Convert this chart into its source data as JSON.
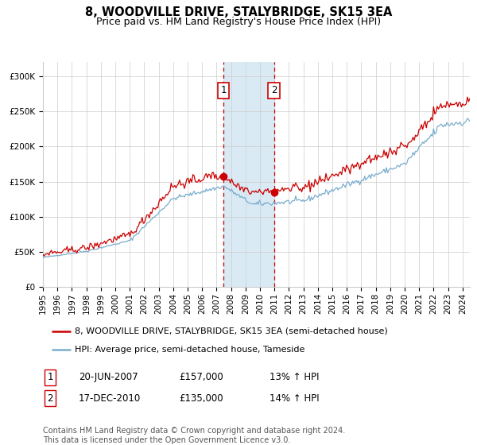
{
  "title": "8, WOODVILLE DRIVE, STALYBRIDGE, SK15 3EA",
  "subtitle": "Price paid vs. HM Land Registry's House Price Index (HPI)",
  "xlabel": "",
  "ylabel": "",
  "ylim": [
    0,
    320000
  ],
  "xlim_start": 1995.0,
  "xlim_end": 2024.5,
  "yticks": [
    0,
    50000,
    100000,
    150000,
    200000,
    250000,
    300000
  ],
  "ytick_labels": [
    "£0",
    "£50K",
    "£100K",
    "£150K",
    "£200K",
    "£250K",
    "£300K"
  ],
  "xtick_years": [
    1995,
    1996,
    1997,
    1998,
    1999,
    2000,
    2001,
    2002,
    2003,
    2004,
    2005,
    2006,
    2007,
    2008,
    2009,
    2010,
    2011,
    2012,
    2013,
    2014,
    2015,
    2016,
    2017,
    2018,
    2019,
    2020,
    2021,
    2022,
    2023,
    2024
  ],
  "red_line_color": "#cc0000",
  "blue_line_color": "#7aadcc",
  "grid_color": "#cccccc",
  "background_color": "#ffffff",
  "sale1_x": 2007.47,
  "sale1_y": 157000,
  "sale1_label": "1",
  "sale2_x": 2010.96,
  "sale2_y": 135000,
  "sale2_label": "2",
  "shade_x1": 2007.47,
  "shade_x2": 2010.96,
  "shade_color": "#daeaf5",
  "dashed_line_color": "#cc0000",
  "legend_red_label": "8, WOODVILLE DRIVE, STALYBRIDGE, SK15 3EA (semi-detached house)",
  "legend_blue_label": "HPI: Average price, semi-detached house, Tameside",
  "table_row1": [
    "1",
    "20-JUN-2007",
    "£157,000",
    "13% ↑ HPI"
  ],
  "table_row2": [
    "2",
    "17-DEC-2010",
    "£135,000",
    "14% ↑ HPI"
  ],
  "footnote": "Contains HM Land Registry data © Crown copyright and database right 2024.\nThis data is licensed under the Open Government Licence v3.0.",
  "title_fontsize": 10.5,
  "subtitle_fontsize": 9,
  "tick_fontsize": 7.5,
  "legend_fontsize": 8,
  "table_fontsize": 8.5,
  "footnote_fontsize": 7
}
